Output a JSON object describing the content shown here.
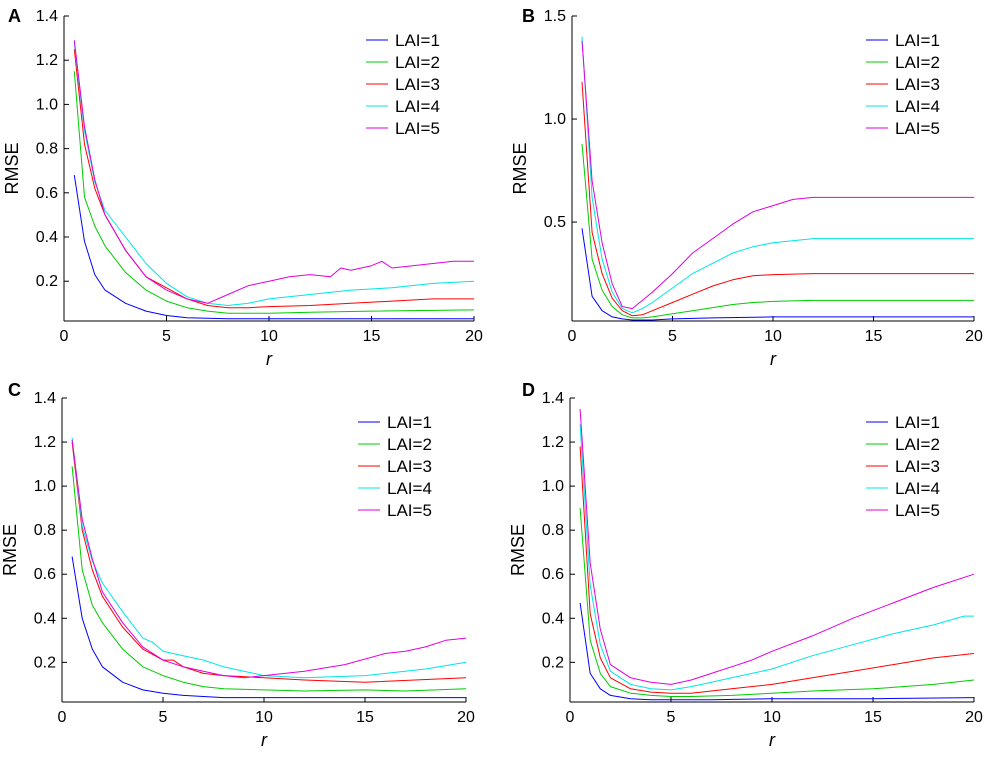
{
  "chart_data": [
    {
      "type": "line",
      "panel_label": "A",
      "xlabel": "r",
      "ylabel": "RMSE",
      "xlim": [
        0,
        20
      ],
      "ylim": [
        0.02,
        1.4
      ],
      "xticks": [
        0,
        5,
        10,
        15,
        20
      ],
      "yticks": [
        0.2,
        0.4,
        0.6,
        0.8,
        1.0,
        1.2,
        1.4
      ],
      "ytick_labels": [
        "0.2",
        "0.4",
        "0.6",
        "0.8",
        "1.0",
        "1.2",
        "1.4"
      ],
      "legend_position": "top-right",
      "grid": false,
      "series": [
        {
          "name": "LAI=1",
          "color": "#0000ff",
          "x": [
            0.5,
            1,
            1.5,
            2,
            3,
            4,
            5,
            6,
            7,
            8,
            10,
            12,
            15,
            20
          ],
          "values": [
            0.68,
            0.38,
            0.23,
            0.16,
            0.1,
            0.065,
            0.045,
            0.035,
            0.032,
            0.03,
            0.03,
            0.03,
            0.03,
            0.03
          ]
        },
        {
          "name": "LAI=2",
          "color": "#00cc00",
          "x": [
            0.5,
            1,
            1.5,
            2,
            3,
            4,
            5,
            6,
            7,
            8,
            10,
            12,
            15,
            20
          ],
          "values": [
            1.15,
            0.58,
            0.45,
            0.36,
            0.24,
            0.16,
            0.11,
            0.08,
            0.065,
            0.055,
            0.055,
            0.06,
            0.065,
            0.07
          ]
        },
        {
          "name": "LAI=3",
          "color": "#ff0000",
          "x": [
            0.5,
            1,
            1.5,
            2,
            3,
            4,
            5,
            6,
            7,
            8,
            9,
            10,
            12,
            14,
            16,
            18,
            20
          ],
          "values": [
            1.25,
            0.82,
            0.62,
            0.5,
            0.34,
            0.22,
            0.17,
            0.12,
            0.09,
            0.08,
            0.08,
            0.085,
            0.09,
            0.1,
            0.11,
            0.12,
            0.12
          ]
        },
        {
          "name": "LAI=4",
          "color": "#00e5e5",
          "x": [
            0.5,
            1,
            1.5,
            2,
            3,
            4,
            5,
            6,
            7,
            8,
            9,
            10,
            12,
            14,
            16,
            18,
            20
          ],
          "values": [
            1.28,
            0.88,
            0.65,
            0.52,
            0.4,
            0.28,
            0.19,
            0.13,
            0.1,
            0.09,
            0.1,
            0.12,
            0.14,
            0.16,
            0.17,
            0.19,
            0.2
          ]
        },
        {
          "name": "LAI=5",
          "color": "#e000e0",
          "x": [
            0.5,
            1,
            1.5,
            2,
            3,
            4,
            5,
            6,
            7,
            8,
            9,
            10,
            11,
            12,
            13,
            13.5,
            14,
            15,
            15.5,
            16,
            17,
            18,
            19,
            20
          ],
          "values": [
            1.29,
            0.9,
            0.66,
            0.5,
            0.34,
            0.22,
            0.16,
            0.12,
            0.1,
            0.14,
            0.18,
            0.2,
            0.22,
            0.23,
            0.22,
            0.26,
            0.25,
            0.27,
            0.29,
            0.26,
            0.27,
            0.28,
            0.29,
            0.29
          ]
        }
      ]
    },
    {
      "type": "line",
      "panel_label": "B",
      "xlabel": "r",
      "ylabel": "RMSE",
      "xlim": [
        0,
        20
      ],
      "ylim": [
        0.02,
        1.5
      ],
      "xticks": [
        0,
        5,
        10,
        15,
        20
      ],
      "yticks": [
        0.5,
        1.0,
        1.5
      ],
      "ytick_labels": [
        "0.5",
        "1.0",
        "1.5"
      ],
      "legend_position": "top-right",
      "grid": false,
      "series": [
        {
          "name": "LAI=1",
          "color": "#0000ff",
          "x": [
            0.5,
            1,
            1.5,
            2,
            2.5,
            3,
            4,
            5,
            7,
            10,
            15,
            20
          ],
          "values": [
            0.47,
            0.14,
            0.07,
            0.04,
            0.03,
            0.025,
            0.025,
            0.03,
            0.035,
            0.04,
            0.04,
            0.04
          ]
        },
        {
          "name": "LAI=2",
          "color": "#00cc00",
          "x": [
            0.5,
            1,
            1.5,
            2,
            2.5,
            3,
            3.5,
            4,
            5,
            6,
            7,
            8,
            9,
            10,
            12,
            15,
            20
          ],
          "values": [
            0.88,
            0.32,
            0.17,
            0.09,
            0.05,
            0.035,
            0.035,
            0.04,
            0.055,
            0.07,
            0.085,
            0.1,
            0.11,
            0.115,
            0.12,
            0.12,
            0.12
          ]
        },
        {
          "name": "LAI=3",
          "color": "#ff0000",
          "x": [
            0.5,
            1,
            1.5,
            2,
            2.5,
            3,
            3.5,
            4,
            5,
            6,
            7,
            8,
            9,
            10,
            12,
            15,
            20
          ],
          "values": [
            1.18,
            0.45,
            0.25,
            0.13,
            0.07,
            0.045,
            0.05,
            0.07,
            0.11,
            0.15,
            0.19,
            0.22,
            0.24,
            0.245,
            0.25,
            0.25,
            0.25
          ]
        },
        {
          "name": "LAI=4",
          "color": "#00e5e5",
          "x": [
            0.5,
            1,
            1.5,
            2,
            2.5,
            3,
            3.5,
            4,
            5,
            6,
            7,
            8,
            9,
            10,
            12,
            15,
            20
          ],
          "values": [
            1.4,
            0.62,
            0.32,
            0.16,
            0.08,
            0.06,
            0.08,
            0.11,
            0.18,
            0.25,
            0.3,
            0.35,
            0.38,
            0.4,
            0.42,
            0.42,
            0.42
          ]
        },
        {
          "name": "LAI=5",
          "color": "#e000e0",
          "x": [
            0.5,
            1,
            1.5,
            2,
            2.5,
            3,
            3.5,
            4,
            5,
            6,
            7,
            8,
            9,
            10,
            11,
            12,
            14,
            16,
            18,
            20
          ],
          "values": [
            1.38,
            0.7,
            0.4,
            0.2,
            0.09,
            0.08,
            0.12,
            0.16,
            0.25,
            0.35,
            0.42,
            0.49,
            0.55,
            0.58,
            0.61,
            0.62,
            0.62,
            0.62,
            0.62,
            0.62
          ]
        }
      ]
    },
    {
      "type": "line",
      "panel_label": "C",
      "xlabel": "r",
      "ylabel": "RMSE",
      "xlim": [
        0,
        20
      ],
      "ylim": [
        0.02,
        1.4
      ],
      "xticks": [
        0,
        5,
        10,
        15,
        20
      ],
      "yticks": [
        0.2,
        0.4,
        0.6,
        0.8,
        1.0,
        1.2,
        1.4
      ],
      "ytick_labels": [
        "0.2",
        "0.4",
        "0.6",
        "0.8",
        "1.0",
        "1.2",
        "1.4"
      ],
      "legend_position": "top-right",
      "grid": false,
      "series": [
        {
          "name": "LAI=1",
          "color": "#0000ff",
          "x": [
            0.5,
            1,
            1.5,
            2,
            3,
            4,
            5,
            6,
            7,
            8,
            10,
            12,
            15,
            20
          ],
          "values": [
            0.68,
            0.4,
            0.26,
            0.18,
            0.11,
            0.075,
            0.06,
            0.05,
            0.045,
            0.04,
            0.04,
            0.04,
            0.04,
            0.04
          ]
        },
        {
          "name": "LAI=2",
          "color": "#00cc00",
          "x": [
            0.5,
            1,
            1.5,
            2,
            3,
            4,
            5,
            6,
            7,
            8,
            10,
            12,
            15,
            17,
            20
          ],
          "values": [
            1.09,
            0.62,
            0.46,
            0.38,
            0.26,
            0.18,
            0.14,
            0.11,
            0.09,
            0.08,
            0.075,
            0.07,
            0.075,
            0.07,
            0.08
          ]
        },
        {
          "name": "LAI=3",
          "color": "#ff0000",
          "x": [
            0.5,
            1,
            1.5,
            2,
            3,
            4,
            5,
            5.5,
            6,
            7,
            8,
            10,
            12,
            15,
            20
          ],
          "values": [
            1.2,
            0.8,
            0.62,
            0.5,
            0.36,
            0.26,
            0.21,
            0.21,
            0.18,
            0.15,
            0.14,
            0.13,
            0.12,
            0.11,
            0.13
          ]
        },
        {
          "name": "LAI=4",
          "color": "#00e5e5",
          "x": [
            0.5,
            1,
            1.5,
            2,
            3,
            4,
            4.5,
            5,
            6,
            7,
            8,
            9,
            10,
            12,
            15,
            18,
            20
          ],
          "values": [
            1.22,
            0.82,
            0.66,
            0.56,
            0.43,
            0.31,
            0.29,
            0.25,
            0.23,
            0.21,
            0.18,
            0.16,
            0.14,
            0.13,
            0.14,
            0.17,
            0.2
          ]
        },
        {
          "name": "LAI=5",
          "color": "#e000e0",
          "x": [
            0.5,
            1,
            1.5,
            2,
            3,
            4,
            5,
            6,
            7,
            8,
            9,
            10,
            12,
            14,
            16,
            17,
            18,
            19,
            20
          ],
          "values": [
            1.21,
            0.85,
            0.67,
            0.52,
            0.38,
            0.27,
            0.21,
            0.18,
            0.16,
            0.14,
            0.13,
            0.14,
            0.16,
            0.19,
            0.24,
            0.25,
            0.27,
            0.3,
            0.31
          ]
        }
      ]
    },
    {
      "type": "line",
      "panel_label": "D",
      "xlabel": "r",
      "ylabel": "RMSE",
      "xlim": [
        0,
        20
      ],
      "ylim": [
        0.02,
        1.4
      ],
      "xticks": [
        0,
        5,
        10,
        15,
        20
      ],
      "yticks": [
        0.2,
        0.4,
        0.6,
        0.8,
        1.0,
        1.2,
        1.4
      ],
      "ytick_labels": [
        "0.2",
        "0.4",
        "0.6",
        "0.8",
        "1.0",
        "1.2",
        "1.4"
      ],
      "legend_position": "top-right",
      "grid": false,
      "series": [
        {
          "name": "LAI=1",
          "color": "#0000ff",
          "x": [
            0.5,
            1,
            1.5,
            2,
            3,
            4,
            5,
            7,
            10,
            15,
            20
          ],
          "values": [
            0.47,
            0.15,
            0.08,
            0.05,
            0.035,
            0.03,
            0.03,
            0.03,
            0.035,
            0.035,
            0.04
          ]
        },
        {
          "name": "LAI=2",
          "color": "#00cc00",
          "x": [
            0.5,
            1,
            1.5,
            2,
            3,
            4,
            5,
            6,
            8,
            10,
            12,
            15,
            18,
            20
          ],
          "values": [
            0.9,
            0.3,
            0.15,
            0.09,
            0.06,
            0.05,
            0.045,
            0.045,
            0.05,
            0.06,
            0.07,
            0.08,
            0.1,
            0.12
          ]
        },
        {
          "name": "LAI=3",
          "color": "#ff0000",
          "x": [
            0.5,
            1,
            1.5,
            2,
            3,
            4,
            5,
            6,
            7,
            8,
            10,
            12,
            14,
            16,
            18,
            20
          ],
          "values": [
            1.18,
            0.42,
            0.22,
            0.13,
            0.08,
            0.065,
            0.06,
            0.06,
            0.07,
            0.08,
            0.1,
            0.13,
            0.16,
            0.19,
            0.22,
            0.24
          ]
        },
        {
          "name": "LAI=4",
          "color": "#00e5e5",
          "x": [
            0.5,
            1,
            1.5,
            2,
            3,
            4,
            5,
            6,
            7,
            8,
            10,
            12,
            14,
            16,
            18,
            19.5,
            20
          ],
          "values": [
            1.28,
            0.55,
            0.28,
            0.16,
            0.1,
            0.08,
            0.075,
            0.09,
            0.11,
            0.13,
            0.17,
            0.23,
            0.28,
            0.33,
            0.37,
            0.41,
            0.41
          ]
        },
        {
          "name": "LAI=5",
          "color": "#e000e0",
          "x": [
            0.5,
            1,
            1.5,
            2,
            3,
            4,
            5,
            6,
            7,
            8,
            9,
            10,
            12,
            14,
            16,
            18,
            20
          ],
          "values": [
            1.35,
            0.65,
            0.35,
            0.19,
            0.13,
            0.11,
            0.1,
            0.12,
            0.15,
            0.18,
            0.21,
            0.25,
            0.32,
            0.4,
            0.47,
            0.54,
            0.6
          ]
        }
      ]
    }
  ]
}
